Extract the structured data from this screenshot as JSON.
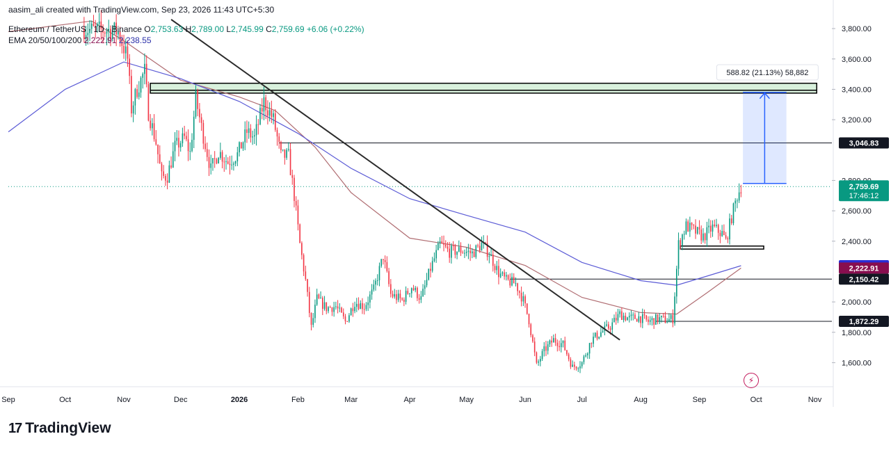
{
  "header": {
    "credit": "aasim_ali created with TradingView.com, Sep 23, 2026 11:43 UTC+5:30",
    "symbol": "Ethereum / TetherUS · 1D · Binance",
    "o_label": "O",
    "o_value": "2,753.63",
    "h_label": "H",
    "h_value": "2,789.00",
    "l_label": "L",
    "l_value": "2,745.99",
    "c_label": "C",
    "c_value": "2,759.69",
    "change": "+6.06 (+0.22%)",
    "ema_label": "EMA 20/50/100/200",
    "ema_val_1": "2,222.91",
    "ema_val_2": "2,238.55"
  },
  "brand": {
    "name": "TradingView",
    "mark": "17"
  },
  "colors": {
    "up": "#089981",
    "down": "#f23645",
    "ema_a": "#b06d72",
    "ema_b": "#5b5bd6",
    "trendline": "#2b2b2b",
    "zone": "#d8f0dc",
    "measure": "#2962ff"
  },
  "chart_data": {
    "type": "candlestick",
    "ylim": [
      1460,
      3860
    ],
    "y_ticks": [
      {
        "value": 1600,
        "label": "1,600.00"
      },
      {
        "value": 1800,
        "label": "1,800.00"
      },
      {
        "value": 2000,
        "label": "2,000.00"
      },
      {
        "value": 2400,
        "label": "2,400.00"
      },
      {
        "value": 2600,
        "label": "2,600.00"
      },
      {
        "value": 2800,
        "label": "2,800.00"
      },
      {
        "value": 3200,
        "label": "3,200.00"
      },
      {
        "value": 3400,
        "label": "3,400.00"
      },
      {
        "value": 3600,
        "label": "3,600.00"
      },
      {
        "value": 3800,
        "label": "3,800.00"
      }
    ],
    "x_start": "2025-09-01",
    "x_end": "2026-11-10",
    "x_ticks": [
      {
        "date": "2025-09-01",
        "label": "Sep"
      },
      {
        "date": "2025-10-01",
        "label": "Oct"
      },
      {
        "date": "2025-11-01",
        "label": "Nov"
      },
      {
        "date": "2025-12-01",
        "label": "Dec"
      },
      {
        "date": "2026-01-01",
        "label": "2026"
      },
      {
        "date": "2026-02-01",
        "label": "Feb"
      },
      {
        "date": "2026-03-01",
        "label": "Mar"
      },
      {
        "date": "2026-04-01",
        "label": "Apr"
      },
      {
        "date": "2026-05-01",
        "label": "May"
      },
      {
        "date": "2026-06-01",
        "label": "Jun"
      },
      {
        "date": "2026-07-01",
        "label": "Jul"
      },
      {
        "date": "2026-08-01",
        "label": "Aug"
      },
      {
        "date": "2026-09-01",
        "label": "Sep"
      },
      {
        "date": "2026-10-01",
        "label": "Oct"
      },
      {
        "date": "2026-11-01",
        "label": "Nov"
      }
    ],
    "price_path": [
      {
        "date": "2025-10-10",
        "value": 3800
      },
      {
        "date": "2025-10-15",
        "value": 3790
      },
      {
        "date": "2025-10-25",
        "value": 3790
      },
      {
        "date": "2025-10-29",
        "value": 3780
      },
      {
        "date": "2025-11-03",
        "value": 3600
      },
      {
        "date": "2025-11-05",
        "value": 3270
      },
      {
        "date": "2025-11-08",
        "value": 3400
      },
      {
        "date": "2025-11-12",
        "value": 3520
      },
      {
        "date": "2025-11-14",
        "value": 3250
      },
      {
        "date": "2025-11-18",
        "value": 3050
      },
      {
        "date": "2025-11-21",
        "value": 2820
      },
      {
        "date": "2025-11-24",
        "value": 2830
      },
      {
        "date": "2025-11-28",
        "value": 3020
      },
      {
        "date": "2025-12-03",
        "value": 3080
      },
      {
        "date": "2025-12-06",
        "value": 2980
      },
      {
        "date": "2025-12-09",
        "value": 3340
      },
      {
        "date": "2025-12-12",
        "value": 3150
      },
      {
        "date": "2025-12-17",
        "value": 2870
      },
      {
        "date": "2025-12-21",
        "value": 2990
      },
      {
        "date": "2025-12-26",
        "value": 2920
      },
      {
        "date": "2025-12-31",
        "value": 2970
      },
      {
        "date": "2026-01-05",
        "value": 3120
      },
      {
        "date": "2026-01-09",
        "value": 3080
      },
      {
        "date": "2026-01-14",
        "value": 3320
      },
      {
        "date": "2026-01-19",
        "value": 3200
      },
      {
        "date": "2026-01-23",
        "value": 2960
      },
      {
        "date": "2026-01-27",
        "value": 2960
      },
      {
        "date": "2026-01-30",
        "value": 2700
      },
      {
        "date": "2026-02-02",
        "value": 2380
      },
      {
        "date": "2026-02-05",
        "value": 2140
      },
      {
        "date": "2026-02-08",
        "value": 1830
      },
      {
        "date": "2026-02-11",
        "value": 2020
      },
      {
        "date": "2026-02-16",
        "value": 1960
      },
      {
        "date": "2026-02-21",
        "value": 1970
      },
      {
        "date": "2026-02-26",
        "value": 1870
      },
      {
        "date": "2026-03-03",
        "value": 2000
      },
      {
        "date": "2026-03-08",
        "value": 1970
      },
      {
        "date": "2026-03-13",
        "value": 2080
      },
      {
        "date": "2026-03-18",
        "value": 2300
      },
      {
        "date": "2026-03-22",
        "value": 2050
      },
      {
        "date": "2026-03-28",
        "value": 2010
      },
      {
        "date": "2026-04-02",
        "value": 2100
      },
      {
        "date": "2026-04-07",
        "value": 2020
      },
      {
        "date": "2026-04-12",
        "value": 2220
      },
      {
        "date": "2026-04-17",
        "value": 2380
      },
      {
        "date": "2026-04-22",
        "value": 2330
      },
      {
        "date": "2026-04-28",
        "value": 2340
      },
      {
        "date": "2026-05-04",
        "value": 2320
      },
      {
        "date": "2026-05-09",
        "value": 2380
      },
      {
        "date": "2026-05-13",
        "value": 2320
      },
      {
        "date": "2026-05-18",
        "value": 2190
      },
      {
        "date": "2026-05-22",
        "value": 2140
      },
      {
        "date": "2026-05-27",
        "value": 2120
      },
      {
        "date": "2026-05-31",
        "value": 2010
      },
      {
        "date": "2026-06-03",
        "value": 1880
      },
      {
        "date": "2026-06-07",
        "value": 1580
      },
      {
        "date": "2026-06-11",
        "value": 1680
      },
      {
        "date": "2026-06-16",
        "value": 1750
      },
      {
        "date": "2026-06-21",
        "value": 1720
      },
      {
        "date": "2026-06-26",
        "value": 1570
      },
      {
        "date": "2026-07-01",
        "value": 1600
      },
      {
        "date": "2026-07-06",
        "value": 1750
      },
      {
        "date": "2026-07-11",
        "value": 1800
      },
      {
        "date": "2026-07-16",
        "value": 1840
      },
      {
        "date": "2026-07-21",
        "value": 1920
      },
      {
        "date": "2026-07-26",
        "value": 1890
      },
      {
        "date": "2026-07-31",
        "value": 1900
      },
      {
        "date": "2026-08-05",
        "value": 1870
      },
      {
        "date": "2026-08-10",
        "value": 1890
      },
      {
        "date": "2026-08-15",
        "value": 1880
      },
      {
        "date": "2026-08-18",
        "value": 1890
      },
      {
        "date": "2026-08-21",
        "value": 2380
      },
      {
        "date": "2026-08-25",
        "value": 2500
      },
      {
        "date": "2026-08-29",
        "value": 2470
      },
      {
        "date": "2026-09-03",
        "value": 2430
      },
      {
        "date": "2026-09-08",
        "value": 2490
      },
      {
        "date": "2026-09-13",
        "value": 2450
      },
      {
        "date": "2026-09-15",
        "value": 2400
      },
      {
        "date": "2026-09-18",
        "value": 2560
      },
      {
        "date": "2026-09-21",
        "value": 2700
      },
      {
        "date": "2026-09-23",
        "value": 2759.69
      }
    ],
    "ema_a": [
      {
        "date": "2025-09-01",
        "value": 3780
      },
      {
        "date": "2025-10-15",
        "value": 3850
      },
      {
        "date": "2025-11-01",
        "value": 3720
      },
      {
        "date": "2025-12-01",
        "value": 3460
      },
      {
        "date": "2026-01-01",
        "value": 3350
      },
      {
        "date": "2026-01-20",
        "value": 3260
      },
      {
        "date": "2026-02-10",
        "value": 3020
      },
      {
        "date": "2026-03-01",
        "value": 2720
      },
      {
        "date": "2026-04-01",
        "value": 2420
      },
      {
        "date": "2026-05-01",
        "value": 2360
      },
      {
        "date": "2026-06-01",
        "value": 2240
      },
      {
        "date": "2026-07-01",
        "value": 2030
      },
      {
        "date": "2026-08-01",
        "value": 1930
      },
      {
        "date": "2026-08-20",
        "value": 1920
      },
      {
        "date": "2026-09-05",
        "value": 2060
      },
      {
        "date": "2026-09-23",
        "value": 2222.91
      }
    ],
    "ema_b": [
      {
        "date": "2025-09-01",
        "value": 3120
      },
      {
        "date": "2025-10-01",
        "value": 3400
      },
      {
        "date": "2025-11-01",
        "value": 3580
      },
      {
        "date": "2025-12-01",
        "value": 3470
      },
      {
        "date": "2026-01-01",
        "value": 3320
      },
      {
        "date": "2026-02-01",
        "value": 3110
      },
      {
        "date": "2026-03-01",
        "value": 2880
      },
      {
        "date": "2026-04-01",
        "value": 2680
      },
      {
        "date": "2026-05-01",
        "value": 2570
      },
      {
        "date": "2026-06-01",
        "value": 2460
      },
      {
        "date": "2026-07-01",
        "value": 2260
      },
      {
        "date": "2026-08-01",
        "value": 2140
      },
      {
        "date": "2026-08-20",
        "value": 2110
      },
      {
        "date": "2026-09-05",
        "value": 2170
      },
      {
        "date": "2026-09-23",
        "value": 2238.55
      }
    ],
    "trendline": [
      {
        "date": "2025-11-26",
        "value": 3860
      },
      {
        "date": "2026-07-21",
        "value": 1750
      }
    ],
    "resistance_zone": {
      "start": "2025-11-15",
      "end": "2026-11-02",
      "low": 3375,
      "high": 3440
    },
    "support_box": {
      "start": "2026-08-22",
      "end": "2026-10-05",
      "low": 2348,
      "high": 2368
    },
    "levels": [
      {
        "value": 3046.83,
        "label": "3,046.83",
        "start": "2026-01-22",
        "bg": "#131722",
        "fg": "#ffffff"
      },
      {
        "value": 2150.42,
        "label": "2,150.42",
        "start": "2026-05-24",
        "bg": "#131722",
        "fg": "#ffffff"
      },
      {
        "value": 1872.29,
        "label": "1,872.29",
        "start": "2026-08-09",
        "bg": "#131722",
        "fg": "#ffffff"
      }
    ],
    "price_labels": [
      {
        "value": 2238.55,
        "label": "2,238.55",
        "bg": "#2a2ed6",
        "fg": "#ffffff"
      },
      {
        "value": 2222.91,
        "label": "2,222.91",
        "bg": "#880e4f",
        "fg": "#ffffff"
      }
    ],
    "last_price": {
      "value": 2759.69,
      "label": "2,759.69",
      "countdown": "17:46:12",
      "bg": "#089981",
      "fg": "#ffffff"
    },
    "measure": {
      "start": "2026-09-24",
      "end": "2026-10-17",
      "low": 2780,
      "high": 3380,
      "label": "588.82 (21.13%) 58,882"
    }
  }
}
